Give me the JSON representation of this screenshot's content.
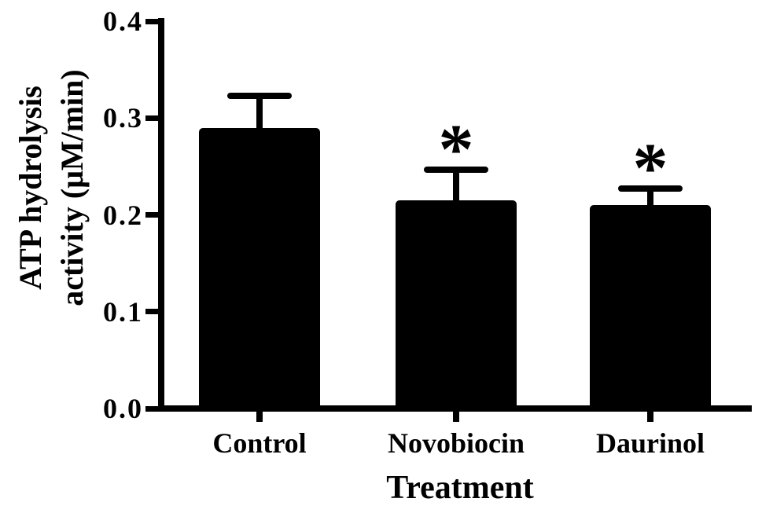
{
  "chart_data": {
    "type": "bar",
    "title": "",
    "xlabel": "Treatment",
    "ylabel": "ATP hydrolysis activity (μM/min)",
    "ylabel_line1": "ATP hydrolysis",
    "ylabel_line2": "activity (μM/min)",
    "categories": [
      "Control",
      "Novobiocin",
      "Daurinol"
    ],
    "values": [
      0.29,
      0.215,
      0.21
    ],
    "error_upper": [
      0.033,
      0.032,
      0.017
    ],
    "significance": [
      "",
      "*",
      "*"
    ],
    "y_ticks": [
      "0.0",
      "0.1",
      "0.2",
      "0.3",
      "0.4"
    ],
    "ylim": [
      0.0,
      0.4
    ],
    "y_tick_step": 0.1,
    "bar_color": "#000000",
    "background_color": "#ffffff",
    "grid": false,
    "legend": "none",
    "error_bars": "upper only, capped"
  }
}
